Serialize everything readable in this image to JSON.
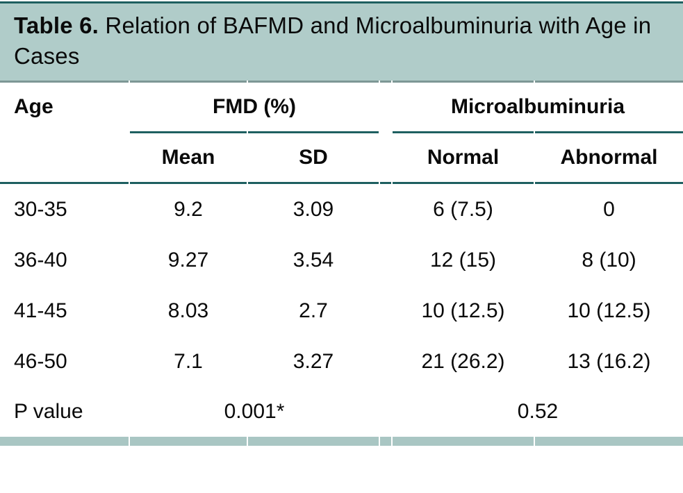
{
  "table": {
    "title_bold": "Table 6.",
    "title_rest": "Relation of BAFMD and Microalbuminuria with Age in Cases",
    "col_age": "Age",
    "group_fmd": "FMD (%)",
    "group_micro": "Microalbuminuria",
    "sub_mean": "Mean",
    "sub_sd": "SD",
    "sub_normal": "Normal",
    "sub_abnormal": "Abnormal",
    "rows": [
      {
        "age": "30-35",
        "mean": "9.2",
        "sd": "3.09",
        "normal": "6 (7.5)",
        "abnormal": "0"
      },
      {
        "age": "36-40",
        "mean": "9.27",
        "sd": "3.54",
        "normal": "12 (15)",
        "abnormal": "8 (10)"
      },
      {
        "age": "41-45",
        "mean": "8.03",
        "sd": "2.7",
        "normal": "10 (12.5)",
        "abnormal": "10 (12.5)"
      },
      {
        "age": "46-50",
        "mean": "7.1",
        "sd": "3.27",
        "normal": "21 (26.2)",
        "abnormal": "13 (16.2)"
      }
    ],
    "pvalue_label": "P value",
    "pvalue_fmd": "0.001*",
    "pvalue_micro": "0.52"
  },
  "colors": {
    "sage": "#b0ccc9",
    "bar_sage": "#a9c6c3",
    "teal": "#1e5f60",
    "rule_gray": "#7d9795",
    "text": "#0a0a0a"
  }
}
